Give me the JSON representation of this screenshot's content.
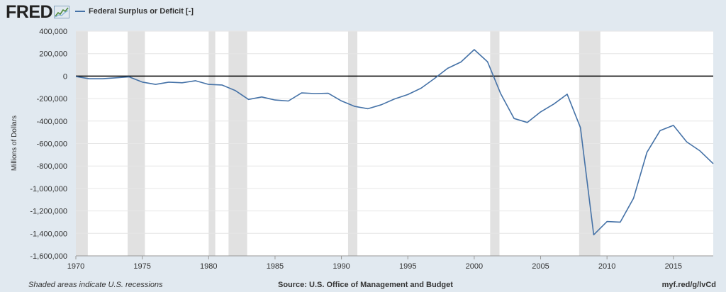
{
  "brand": {
    "logo_text": "FRED",
    "logo_icon": "fred-graph-icon"
  },
  "legend": {
    "label": "Federal Surplus or Deficit [-]",
    "color": "#4572a7"
  },
  "footer": {
    "left": "Shaded areas indicate U.S. recessions",
    "center": "Source: U.S. Office of Management and Budget",
    "right": "myf.red/g/lvCd"
  },
  "chart_data": {
    "type": "line",
    "title": "",
    "xlabel": "",
    "ylabel": "Millions of Dollars",
    "xlim": [
      1970,
      2018
    ],
    "ylim": [
      -1600000,
      400000
    ],
    "yticks": [
      400000,
      200000,
      0,
      -200000,
      -400000,
      -600000,
      -800000,
      -1000000,
      -1200000,
      -1400000,
      -1600000
    ],
    "ytick_labels": [
      "400,000",
      "200,000",
      "0",
      "-200,000",
      "-400,000",
      "-600,000",
      "-800,000",
      "-1,000,000",
      "-1,200,000",
      "-1,400,000",
      "-1,600,000"
    ],
    "xticks": [
      1970,
      1975,
      1980,
      1985,
      1990,
      1995,
      2000,
      2005,
      2010,
      2015
    ],
    "xtick_labels": [
      "1970",
      "1975",
      "1980",
      "1985",
      "1990",
      "1995",
      "2000",
      "2005",
      "2010",
      "2015"
    ],
    "grid": true,
    "zero_line": true,
    "recessions": [
      [
        1970.0,
        1970.9
      ],
      [
        1973.9,
        1975.2
      ],
      [
        1980.0,
        1980.5
      ],
      [
        1981.5,
        1982.9
      ],
      [
        1990.5,
        1991.2
      ],
      [
        2001.2,
        2001.9
      ],
      [
        2007.9,
        2009.5
      ]
    ],
    "series": [
      {
        "name": "Federal Surplus or Deficit [-]",
        "color": "#4572a7",
        "x": [
          1970,
          1971,
          1972,
          1973,
          1974,
          1975,
          1976,
          1977,
          1978,
          1979,
          1980,
          1981,
          1982,
          1983,
          1984,
          1985,
          1986,
          1987,
          1988,
          1989,
          1990,
          1991,
          1992,
          1993,
          1994,
          1995,
          1996,
          1997,
          1998,
          1999,
          2000,
          2001,
          2002,
          2003,
          2004,
          2005,
          2006,
          2007,
          2008,
          2009,
          2010,
          2011,
          2012,
          2013,
          2014,
          2015,
          2016,
          2017,
          2018
        ],
        "values": [
          -2842,
          -23033,
          -23373,
          -14908,
          -6135,
          -53242,
          -73732,
          -53659,
          -59185,
          -40726,
          -73830,
          -78968,
          -127977,
          -207802,
          -185367,
          -212308,
          -221227,
          -149730,
          -155178,
          -152639,
          -221036,
          -269238,
          -290321,
          -255051,
          -203186,
          -163952,
          -107431,
          -21884,
          69270,
          125610,
          236241,
          128236,
          -157758,
          -377585,
          -412727,
          -318346,
          -248181,
          -160701,
          -458553,
          -1412688,
          -1294373,
          -1299599,
          -1087024,
          -679775,
          -484602,
          -438496,
          -584651,
          -665446,
          -779137
        ]
      }
    ]
  }
}
